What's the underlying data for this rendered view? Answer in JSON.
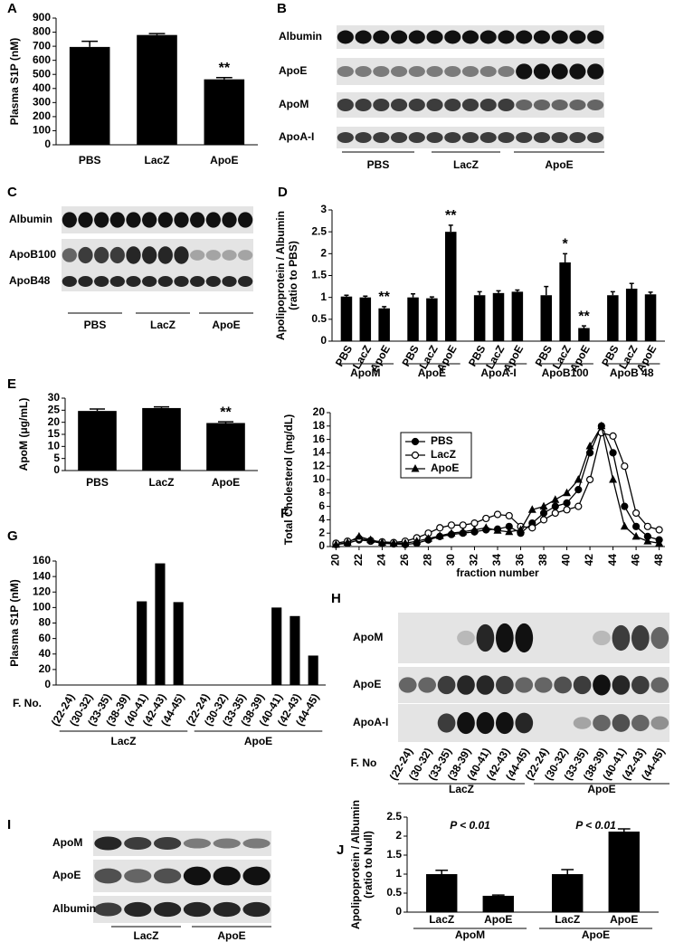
{
  "chart_data": [
    {
      "type": "bar",
      "panel": "A",
      "ylabel": [
        "Plasma S1P (nM)"
      ],
      "categories": [
        "PBS",
        "LacZ",
        "ApoE"
      ],
      "values": [
        695,
        780,
        465
      ],
      "errors": [
        40,
        10,
        12
      ],
      "annotations": [
        null,
        null,
        "**"
      ],
      "color": "#000000",
      "ylim": [
        0,
        900
      ],
      "yticks": [
        0,
        100,
        200,
        300,
        400,
        500,
        600,
        700,
        800,
        900
      ]
    },
    {
      "type": "bar",
      "panel": "D",
      "ylabel": [
        "Apolipoprotein / Albumin",
        "(ratio to PBS)"
      ],
      "groups": [
        "ApoM",
        "ApoE",
        "ApoA-I",
        "ApoB100",
        "ApoB 48"
      ],
      "categories": [
        "PBS",
        "LacZ",
        "ApoE",
        "PBS",
        "LacZ",
        "ApoE",
        "PBS",
        "LacZ",
        "ApoE",
        "PBS",
        "LacZ",
        "ApoE",
        "PBS",
        "LacZ",
        "ApoE"
      ],
      "values": [
        1.02,
        1.0,
        0.75,
        1.0,
        0.98,
        2.5,
        1.05,
        1.1,
        1.13,
        1.05,
        1.8,
        0.3,
        1.05,
        1.2,
        1.07
      ],
      "errors": [
        0.03,
        0.03,
        0.04,
        0.08,
        0.03,
        0.15,
        0.08,
        0.05,
        0.04,
        0.2,
        0.2,
        0.05,
        0.08,
        0.12,
        0.05
      ],
      "annotations": [
        null,
        null,
        "**",
        null,
        null,
        "**",
        null,
        null,
        null,
        null,
        "*",
        "**",
        null,
        null,
        null
      ],
      "color": "#000000",
      "ylim": [
        0,
        3
      ],
      "yticks": [
        0,
        0.5,
        1,
        1.5,
        2,
        2.5,
        3
      ]
    },
    {
      "type": "bar",
      "panel": "E",
      "ylabel": [
        "ApoM (μg/mL)"
      ],
      "categories": [
        "PBS",
        "LacZ",
        "ApoE"
      ],
      "values": [
        24.7,
        25.9,
        19.7
      ],
      "errors": [
        0.8,
        0.5,
        0.5
      ],
      "annotations": [
        null,
        null,
        "**"
      ],
      "color": "#000000",
      "ylim": [
        0,
        30
      ],
      "yticks": [
        0,
        5,
        10,
        15,
        20,
        25,
        30
      ]
    },
    {
      "type": "line",
      "panel": "F",
      "ylabel": [
        "Total Cholesterol (mg/dL)"
      ],
      "xlabel": "fraction number",
      "x": [
        20,
        21,
        22,
        23,
        24,
        25,
        26,
        27,
        28,
        29,
        30,
        31,
        32,
        33,
        34,
        35,
        36,
        37,
        38,
        39,
        40,
        41,
        42,
        43,
        44,
        45,
        46,
        47,
        48
      ],
      "series": [
        {
          "name": "PBS",
          "color": "#000000",
          "marker": "circle",
          "values": [
            0.3,
            0.5,
            1.0,
            0.8,
            0.5,
            0.4,
            0.3,
            0.5,
            1.0,
            1.5,
            1.8,
            2.0,
            2.2,
            2.5,
            2.6,
            3.0,
            2.0,
            3.5,
            5.0,
            6.0,
            6.5,
            8.5,
            14,
            18,
            14,
            6,
            3,
            1.5,
            1.0
          ]
        },
        {
          "name": "LacZ",
          "color": "#000000",
          "marker": "open-circle",
          "values": [
            0.5,
            0.8,
            1.2,
            0.9,
            0.7,
            0.6,
            0.8,
            1.3,
            2.0,
            2.8,
            3.2,
            3.2,
            3.5,
            4.2,
            4.8,
            4.6,
            3.0,
            2.8,
            4.0,
            5.0,
            5.5,
            6.0,
            10,
            17,
            16.5,
            12,
            5,
            3,
            2.5
          ]
        },
        {
          "name": "ApoE",
          "color": "#000000",
          "marker": "triangle",
          "values": [
            0.3,
            0.6,
            1.5,
            1.0,
            0.6,
            0.5,
            0.5,
            0.8,
            1.2,
            1.6,
            2.0,
            2.2,
            2.5,
            2.8,
            2.4,
            2.2,
            2.5,
            5.5,
            6.0,
            7.0,
            8.0,
            10,
            15,
            18,
            10,
            3,
            1.5,
            0.8,
            0.5
          ]
        }
      ],
      "xlim": [
        19.5,
        48.5
      ],
      "xticks": [
        20,
        22,
        24,
        26,
        28,
        30,
        32,
        34,
        36,
        38,
        40,
        42,
        44,
        46,
        48
      ],
      "ylim": [
        0,
        20
      ],
      "yticks": [
        0,
        2,
        4,
        6,
        8,
        10,
        12,
        14,
        16,
        18,
        20
      ],
      "legend": "upper-left"
    },
    {
      "type": "bar",
      "panel": "G",
      "ylabel": [
        "Plasma S1P (nM)"
      ],
      "category_axis_label": "F. No.",
      "groups": [
        "LacZ",
        "ApoE"
      ],
      "categories": [
        "(22-24)",
        "(30-32)",
        "(33-35)",
        "(38-39)",
        "(40-41)",
        "(42-43)",
        "(44-45)",
        "(22-24)",
        "(30-32)",
        "(33-35)",
        "(38-39)",
        "(40-41)",
        "(42-43)",
        "(44-45)"
      ],
      "values": [
        0,
        0,
        0,
        0,
        108,
        157,
        107,
        0,
        0,
        0,
        0,
        100,
        89,
        38
      ],
      "color": "#000000",
      "ylim": [
        0,
        160
      ],
      "yticks": [
        0,
        20,
        40,
        60,
        80,
        100,
        120,
        140,
        160
      ]
    },
    {
      "type": "bar",
      "panel": "J",
      "ylabel": [
        "Apolipoprotein / Albumin",
        "(ratio to Null)"
      ],
      "groups": [
        "ApoM",
        "ApoE"
      ],
      "group_annotations": [
        "P < 0.01",
        "P < 0.01"
      ],
      "categories": [
        "LacZ",
        "ApoE",
        "LacZ",
        "ApoE"
      ],
      "values": [
        1.0,
        0.43,
        1.0,
        2.12
      ],
      "errors": [
        0.1,
        0.02,
        0.12,
        0.07
      ],
      "color": "#000000",
      "ylim": [
        0,
        2.5
      ],
      "yticks": [
        0,
        0.5,
        1,
        1.5,
        2,
        2.5
      ]
    }
  ],
  "blots": [
    {
      "panel": "B",
      "rows": [
        "Albumin",
        "ApoE",
        "ApoM",
        "ApoA-I"
      ],
      "groups": [
        "PBS",
        "LacZ",
        "ApoE"
      ]
    },
    {
      "panel": "C",
      "rows": [
        "Albumin",
        "ApoB100",
        "ApoB48"
      ],
      "groups": [
        "PBS",
        "LacZ",
        "ApoE"
      ]
    },
    {
      "panel": "H",
      "rows": [
        "ApoM",
        "ApoE",
        "ApoA-I"
      ],
      "lane_axis_label": "F. No",
      "lanes": [
        "(22-24)",
        "(30-32)",
        "(33-35)",
        "(38-39)",
        "(40-41)",
        "(42-43)",
        "(44-45)",
        "(22-24)",
        "(30-32)",
        "(33-35)",
        "(38-39)",
        "(40-41)",
        "(42-43)",
        "(44-45)"
      ],
      "groups": [
        "LacZ",
        "ApoE"
      ]
    },
    {
      "panel": "I",
      "rows": [
        "ApoM",
        "ApoE",
        "Albumin"
      ],
      "groups": [
        "LacZ",
        "ApoE"
      ]
    }
  ]
}
